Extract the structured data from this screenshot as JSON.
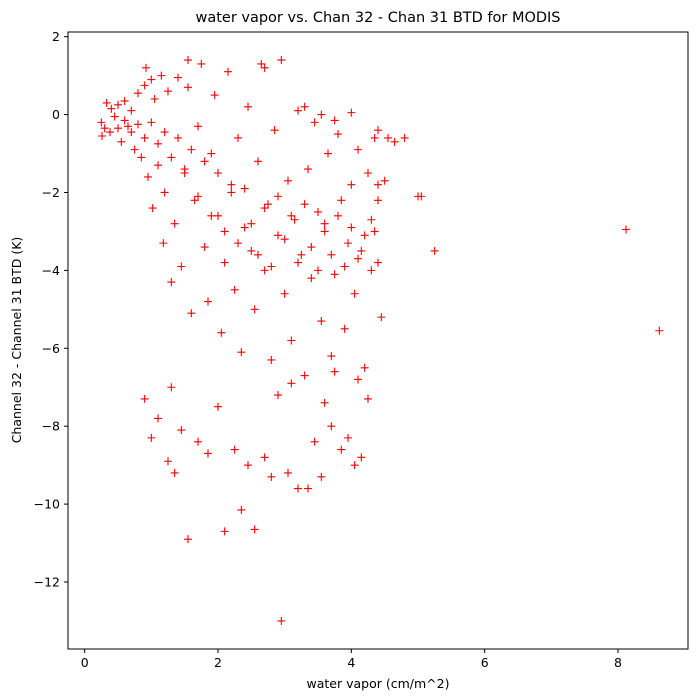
{
  "chart_data": {
    "type": "scatter",
    "title": "water vapor vs. Chan 32 - Chan 31 BTD for MODIS",
    "xlabel": "water vapor (cm/m^2)",
    "ylabel": "Channel 32 - Channel 31 BTD (K)",
    "xlim": [
      -0.25,
      9.05
    ],
    "ylim": [
      -13.72,
      2.12
    ],
    "xticks": [
      0,
      2,
      4,
      6,
      8
    ],
    "yticks": [
      2,
      0,
      -2,
      -4,
      -6,
      -8,
      -10,
      -12
    ],
    "grid": false,
    "legend": "none",
    "marker": "+",
    "marker_color": "#ff0000",
    "points": [
      [
        0.25,
        -0.2
      ],
      [
        0.26,
        -0.55
      ],
      [
        0.3,
        -0.35
      ],
      [
        0.33,
        0.3
      ],
      [
        0.38,
        -0.45
      ],
      [
        0.4,
        0.15
      ],
      [
        0.45,
        -0.05
      ],
      [
        0.5,
        0.25
      ],
      [
        0.55,
        -0.7
      ],
      [
        0.6,
        0.35
      ],
      [
        0.65,
        -0.3
      ],
      [
        0.7,
        0.1
      ],
      [
        0.75,
        -0.9
      ],
      [
        0.8,
        0.55
      ],
      [
        0.85,
        -1.1
      ],
      [
        0.9,
        0.75
      ],
      [
        0.92,
        1.2
      ],
      [
        0.95,
        -1.6
      ],
      [
        1.0,
        0.9
      ],
      [
        1.02,
        -2.4
      ],
      [
        1.05,
        0.4
      ],
      [
        1.1,
        -1.3
      ],
      [
        1.15,
        1.0
      ],
      [
        1.18,
        -3.3
      ],
      [
        1.2,
        -2.0
      ],
      [
        1.25,
        0.6
      ],
      [
        1.3,
        -4.3
      ],
      [
        1.35,
        -2.8
      ],
      [
        1.4,
        0.95
      ],
      [
        1.45,
        -3.9
      ],
      [
        1.5,
        -1.5
      ],
      [
        1.55,
        0.7
      ],
      [
        1.6,
        -5.1
      ],
      [
        1.65,
        -2.2
      ],
      [
        1.7,
        -0.3
      ],
      [
        1.75,
        1.3
      ],
      [
        1.8,
        -3.4
      ],
      [
        1.85,
        -4.8
      ],
      [
        1.9,
        -1.0
      ],
      [
        1.95,
        0.5
      ],
      [
        2.0,
        -2.6
      ],
      [
        2.05,
        -5.6
      ],
      [
        2.1,
        -3.8
      ],
      [
        2.15,
        1.1
      ],
      [
        2.2,
        -1.8
      ],
      [
        2.25,
        -4.5
      ],
      [
        2.3,
        -0.6
      ],
      [
        2.35,
        -6.1
      ],
      [
        2.4,
        -2.9
      ],
      [
        2.45,
        0.2
      ],
      [
        2.5,
        -3.5
      ],
      [
        2.55,
        -5.0
      ],
      [
        2.6,
        -1.2
      ],
      [
        2.65,
        1.3
      ],
      [
        2.7,
        -4.0
      ],
      [
        2.75,
        -2.3
      ],
      [
        2.8,
        -6.3
      ],
      [
        2.85,
        -0.4
      ],
      [
        2.9,
        -3.1
      ],
      [
        2.95,
        1.4
      ],
      [
        3.0,
        -4.6
      ],
      [
        3.05,
        -1.7
      ],
      [
        3.1,
        -5.8
      ],
      [
        3.15,
        -2.7
      ],
      [
        3.2,
        0.1
      ],
      [
        3.25,
        -3.6
      ],
      [
        3.3,
        -6.7
      ],
      [
        3.35,
        -1.4
      ],
      [
        3.4,
        -4.2
      ],
      [
        3.45,
        -0.2
      ],
      [
        3.5,
        -2.5
      ],
      [
        3.55,
        -5.3
      ],
      [
        3.6,
        -3.0
      ],
      [
        3.65,
        -1.0
      ],
      [
        3.7,
        -6.2
      ],
      [
        3.75,
        -4.1
      ],
      [
        3.8,
        -0.5
      ],
      [
        3.85,
        -2.2
      ],
      [
        3.9,
        -5.5
      ],
      [
        3.95,
        -3.3
      ],
      [
        4.0,
        -1.8
      ],
      [
        4.05,
        -4.6
      ],
      [
        4.1,
        -0.9
      ],
      [
        4.15,
        -3.5
      ],
      [
        4.2,
        -6.5
      ],
      [
        4.25,
        -1.5
      ],
      [
        4.3,
        -4.0
      ],
      [
        4.35,
        -3.0
      ],
      [
        4.4,
        -2.2
      ],
      [
        4.45,
        -5.2
      ],
      [
        0.5,
        -0.35
      ],
      [
        0.6,
        -0.15
      ],
      [
        0.7,
        -0.45
      ],
      [
        0.8,
        -0.25
      ],
      [
        0.9,
        -0.6
      ],
      [
        1.0,
        -0.2
      ],
      [
        1.1,
        -0.75
      ],
      [
        1.2,
        -0.45
      ],
      [
        1.3,
        -1.1
      ],
      [
        1.4,
        -0.6
      ],
      [
        1.5,
        -1.4
      ],
      [
        1.6,
        -0.9
      ],
      [
        1.7,
        -2.1
      ],
      [
        1.8,
        -1.2
      ],
      [
        1.9,
        -2.6
      ],
      [
        2.0,
        -1.5
      ],
      [
        2.1,
        -3.0
      ],
      [
        2.2,
        -2.0
      ],
      [
        2.3,
        -3.3
      ],
      [
        2.4,
        -1.9
      ],
      [
        2.5,
        -2.8
      ],
      [
        2.6,
        -3.6
      ],
      [
        2.7,
        -2.4
      ],
      [
        2.8,
        -3.9
      ],
      [
        2.9,
        -2.1
      ],
      [
        3.0,
        -3.2
      ],
      [
        3.1,
        -2.6
      ],
      [
        3.2,
        -3.8
      ],
      [
        3.3,
        -2.3
      ],
      [
        3.4,
        -3.4
      ],
      [
        3.5,
        -4.0
      ],
      [
        3.6,
        -2.8
      ],
      [
        3.7,
        -3.6
      ],
      [
        3.8,
        -2.6
      ],
      [
        3.9,
        -3.9
      ],
      [
        4.0,
        -2.9
      ],
      [
        4.1,
        -3.7
      ],
      [
        4.2,
        -3.1
      ],
      [
        4.3,
        -2.7
      ],
      [
        4.4,
        -3.8
      ],
      [
        0.9,
        -7.3
      ],
      [
        1.0,
        -8.3
      ],
      [
        1.1,
        -7.8
      ],
      [
        1.25,
        -8.9
      ],
      [
        1.35,
        -9.2
      ],
      [
        1.45,
        -8.1
      ],
      [
        1.55,
        -10.9
      ],
      [
        1.7,
        -8.4
      ],
      [
        1.85,
        -8.7
      ],
      [
        2.0,
        -7.5
      ],
      [
        2.1,
        -10.7
      ],
      [
        2.25,
        -8.6
      ],
      [
        2.35,
        -10.15
      ],
      [
        2.45,
        -9.0
      ],
      [
        2.55,
        -10.65
      ],
      [
        2.7,
        -8.8
      ],
      [
        2.8,
        -9.3
      ],
      [
        2.95,
        -13.0
      ],
      [
        3.05,
        -9.2
      ],
      [
        3.2,
        -9.6
      ],
      [
        3.35,
        -9.6
      ],
      [
        3.45,
        -8.4
      ],
      [
        3.55,
        -9.3
      ],
      [
        3.7,
        -8.0
      ],
      [
        3.85,
        -8.6
      ],
      [
        3.95,
        -8.3
      ],
      [
        4.05,
        -9.0
      ],
      [
        4.15,
        -8.8
      ],
      [
        1.3,
        -7.0
      ],
      [
        2.9,
        -7.2
      ],
      [
        3.1,
        -6.9
      ],
      [
        3.6,
        -7.4
      ],
      [
        4.25,
        -7.3
      ],
      [
        4.1,
        -6.8
      ],
      [
        3.75,
        -6.6
      ],
      [
        4.35,
        -0.6
      ],
      [
        4.4,
        -0.4
      ],
      [
        4.55,
        -0.6
      ],
      [
        4.65,
        -0.7
      ],
      [
        4.8,
        -0.6
      ],
      [
        4.4,
        -1.8
      ],
      [
        4.5,
        -1.7
      ],
      [
        5.0,
        -2.1
      ],
      [
        5.05,
        -2.1
      ],
      [
        5.25,
        -3.5
      ],
      [
        8.12,
        -2.95
      ],
      [
        8.62,
        -5.55
      ],
      [
        1.55,
        1.4
      ],
      [
        2.7,
        1.2
      ],
      [
        3.3,
        0.2
      ],
      [
        3.55,
        0.0
      ],
      [
        3.75,
        -0.15
      ],
      [
        4.0,
        0.05
      ]
    ]
  }
}
